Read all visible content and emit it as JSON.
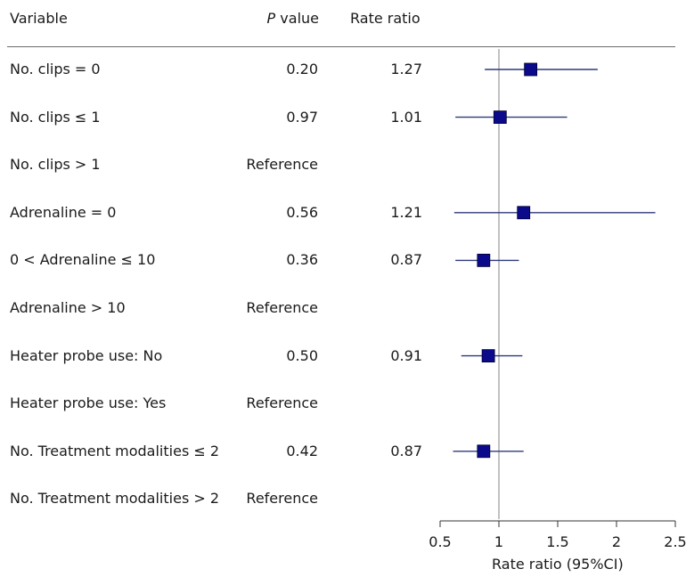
{
  "header": {
    "variable": "Variable",
    "p_italic": "P",
    "p_rest": " value",
    "rate_ratio": "Rate ratio"
  },
  "colors": {
    "marker": "#0a0a8a",
    "ci_line": "#2f3a7a",
    "ref_line": "#9a9a9a",
    "axis": "#333333"
  },
  "chart_data": {
    "type": "forest",
    "xlabel": "Rate ratio (95%CI)",
    "xlim": [
      0.5,
      2.5
    ],
    "xticks": [
      0.5,
      1,
      1.5,
      2,
      2.5
    ],
    "xtick_labels": [
      "0.5",
      "1",
      "1.5",
      "2",
      "2.5"
    ],
    "reference_line": 1,
    "rows": [
      {
        "label": "No. clips = 0",
        "p": "0.20",
        "rr_text": "1.27",
        "rr": 1.27,
        "lo": 0.88,
        "hi": 1.84
      },
      {
        "label": "No. clips ≤ 1",
        "p": "0.97",
        "rr_text": "1.01",
        "rr": 1.01,
        "lo": 0.63,
        "hi": 1.58
      },
      {
        "label": "No. clips > 1",
        "p": "Reference",
        "rr_text": "",
        "rr": null,
        "lo": null,
        "hi": null
      },
      {
        "label": "Adrenaline = 0",
        "p": "0.56",
        "rr_text": "1.21",
        "rr": 1.21,
        "lo": 0.62,
        "hi": 2.33
      },
      {
        "label": "0 < Adrenaline ≤ 10",
        "p": "0.36",
        "rr_text": "0.87",
        "rr": 0.87,
        "lo": 0.63,
        "hi": 1.17
      },
      {
        "label": "Adrenaline > 10",
        "p": "Reference",
        "rr_text": "",
        "rr": null,
        "lo": null,
        "hi": null
      },
      {
        "label": "Heater probe use: No",
        "p": "0.50",
        "rr_text": "0.91",
        "rr": 0.91,
        "lo": 0.68,
        "hi": 1.2
      },
      {
        "label": "Heater probe use: Yes",
        "p": "Reference",
        "rr_text": "",
        "rr": null,
        "lo": null,
        "hi": null
      },
      {
        "label": "No. Treatment modalities ≤ 2",
        "p": "0.42",
        "rr_text": "0.87",
        "rr": 0.87,
        "lo": 0.61,
        "hi": 1.21
      },
      {
        "label": "No. Treatment modalities > 2",
        "p": "Reference",
        "rr_text": "",
        "rr": null,
        "lo": null,
        "hi": null
      }
    ]
  }
}
